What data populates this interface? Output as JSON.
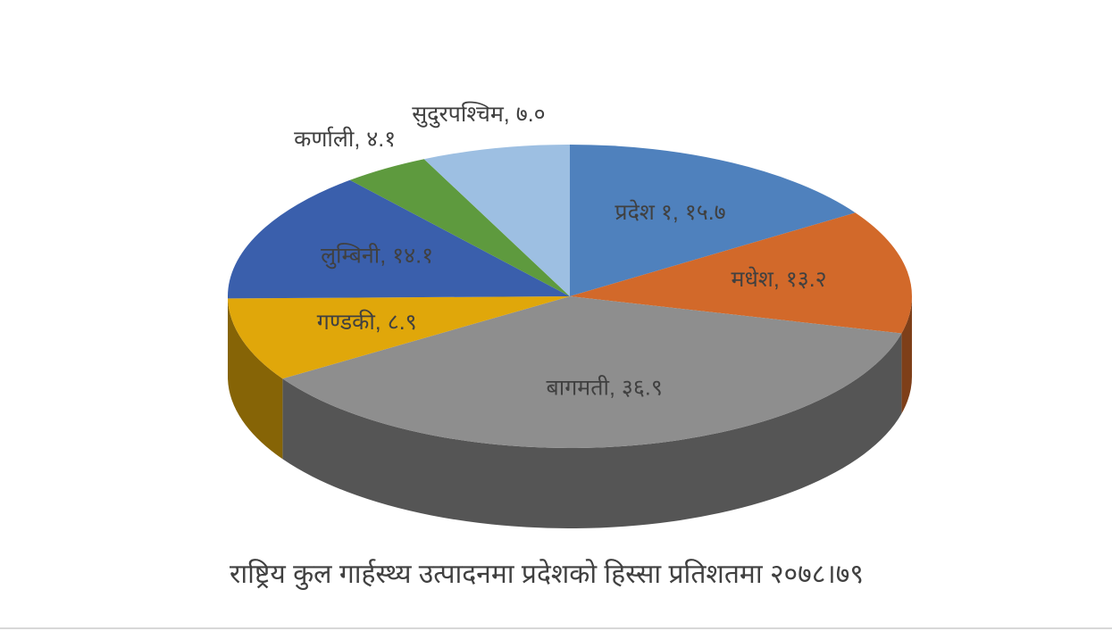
{
  "chart_data": {
    "type": "pie",
    "title": "राष्ट्रिय कुल गार्हस्थ्य उत्पादनमा प्रदेशको हिस्सा  प्रतिशतमा २०७८।७९",
    "values": [
      15.7,
      13.2,
      36.9,
      8.9,
      14.1,
      4.1,
      7.0
    ],
    "value_labels": [
      "प्रदेश १, १५.७",
      "मधेश, १३.२",
      "बागमती, ३६.९",
      "गण्डकी, ८.९",
      "लुम्बिनी, १४.१",
      "कर्णाली, ४.१",
      "सुदुरपश्चिम, ७.०"
    ],
    "colors": [
      "#4f81bd",
      "#d2692a",
      "#8e8e8e",
      "#e0a70a",
      "#3a5fac",
      "#5e9a3e",
      "#9dbfe2"
    ]
  }
}
